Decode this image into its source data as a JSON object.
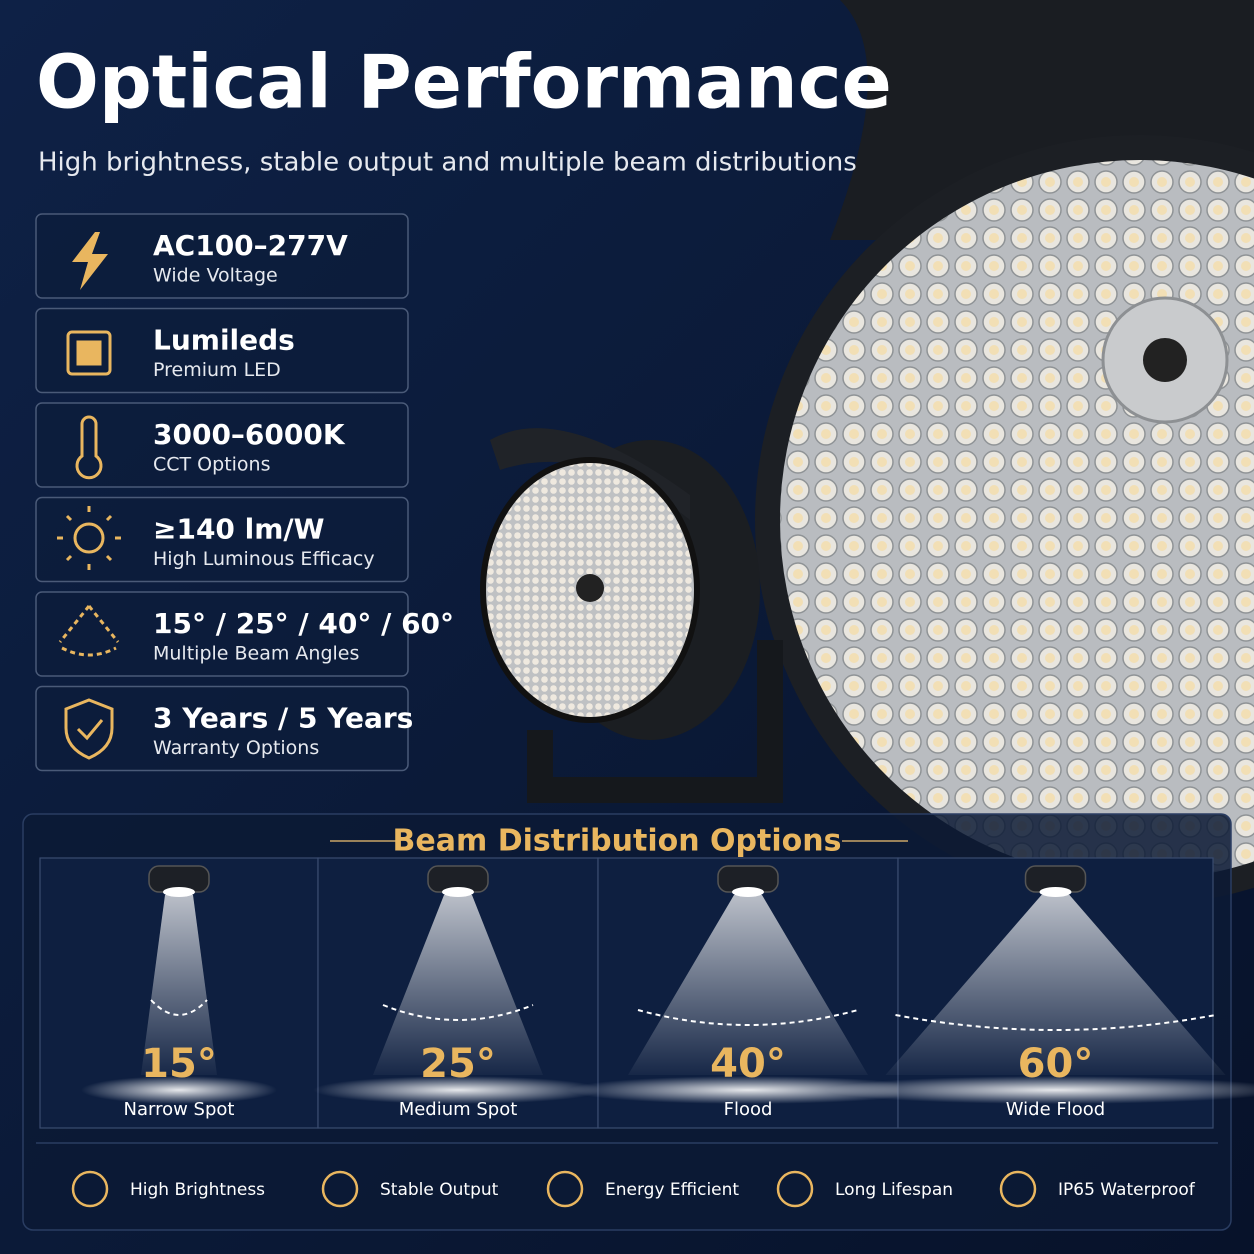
{
  "header": {
    "title": "Optical Performance",
    "subtitle": "High brightness, stable output and multiple beam distributions"
  },
  "features": [
    {
      "title": "AC100–277V",
      "subtitle": "Wide Voltage"
    },
    {
      "title": "Lumileds",
      "subtitle": "Premium LED"
    },
    {
      "title": "3000–6000K",
      "subtitle": "CCT Options"
    },
    {
      "title": "≥140 lm/W",
      "subtitle": "High Luminous Efficacy"
    },
    {
      "title": "15° / 25° / 40° / 60°",
      "subtitle": "Multiple Beam Angles"
    },
    {
      "title": "3 Years / 5 Years",
      "subtitle": "Warranty Options"
    }
  ],
  "beam": {
    "title": "Beam Distribution Options",
    "options": [
      {
        "angle": "15°",
        "label": "Narrow Spot"
      },
      {
        "angle": "25°",
        "label": "Medium Spot"
      },
      {
        "angle": "40°",
        "label": "Flood"
      },
      {
        "angle": "60°",
        "label": "Wide Flood"
      }
    ]
  },
  "footer": {
    "items": [
      "High Brightness",
      "Stable Output",
      "Energy Efficient",
      "Long Lifespan",
      "IP65 Waterproof"
    ]
  }
}
